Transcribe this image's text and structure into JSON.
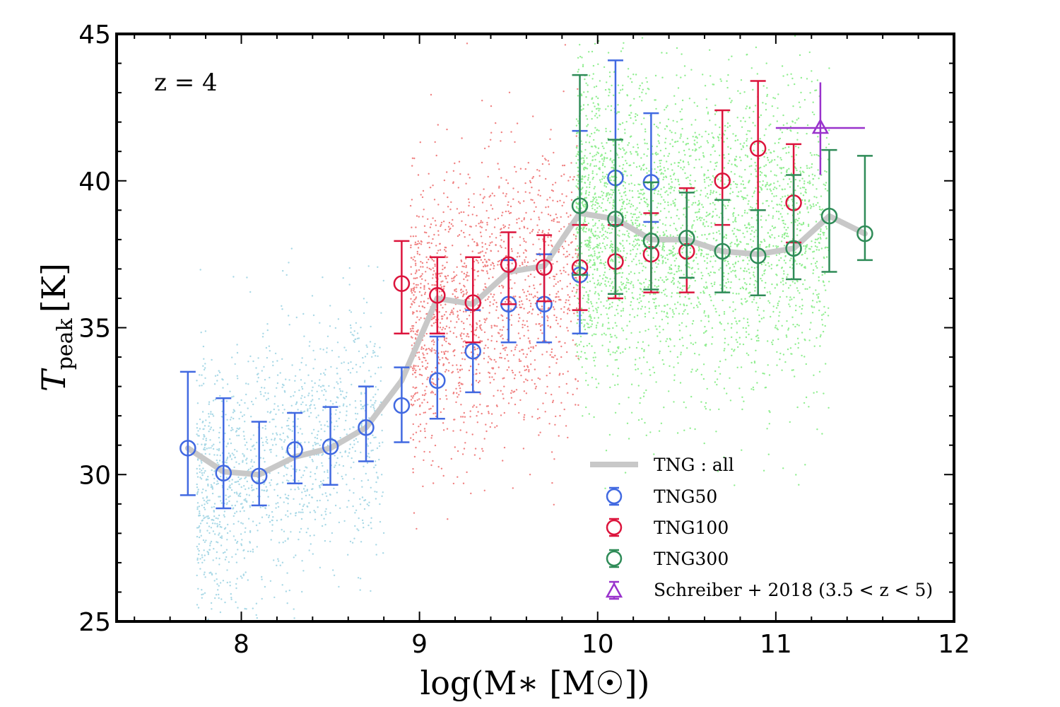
{
  "chart_data": {
    "type": "scatter",
    "annotation": "z = 4",
    "xlabel": "log(M∗ [M☉])",
    "ylabel": "T",
    "ylabel_sub": "peak",
    "ylabel_unit": "[K]",
    "xlim": [
      7.3,
      12.0
    ],
    "ylim": [
      25,
      45
    ],
    "xticks": [
      8,
      9,
      10,
      11,
      12
    ],
    "yticks": [
      25,
      30,
      35,
      40,
      45
    ],
    "colors": {
      "tng50": "#4169e1",
      "tng100": "#dc143c",
      "tng300": "#2e8b57",
      "schreiber": "#9932cc",
      "trend": "#c8c8c8",
      "cloud50": "#a8d8e6",
      "cloud100": "#f08080",
      "cloud300": "#90ee90"
    },
    "clouds": [
      {
        "name": "TNG50 galaxies",
        "xrange": [
          7.75,
          8.8
        ],
        "center": [
          7.8,
          29.5,
          8.8,
          32.0
        ],
        "count": 1400,
        "spread": 2.2
      },
      {
        "name": "TNG100 galaxies",
        "xrange": [
          8.95,
          9.9
        ],
        "center": [
          8.95,
          35.0,
          9.9,
          37.0
        ],
        "count": 1600,
        "spread": 2.4
      },
      {
        "name": "TNG300 galaxies",
        "xrange": [
          9.88,
          11.3
        ],
        "center": [
          9.88,
          38.5,
          11.3,
          38.0
        ],
        "count": 3200,
        "spread": 2.6
      }
    ],
    "trend": {
      "name": "TNG: all",
      "x": [
        7.7,
        7.9,
        8.1,
        8.3,
        8.5,
        8.7,
        8.9,
        9.1,
        9.3,
        9.5,
        9.7,
        9.9,
        10.1,
        10.3,
        10.5,
        10.7,
        10.9,
        11.1,
        11.3,
        11.5
      ],
      "y": [
        30.9,
        30.1,
        30.0,
        30.6,
        30.9,
        31.6,
        33.2,
        36.0,
        35.8,
        36.9,
        37.1,
        38.9,
        38.7,
        38.0,
        38.0,
        37.6,
        37.5,
        37.7,
        38.8,
        38.2
      ]
    },
    "series": [
      {
        "name": "TNG50",
        "x": [
          7.7,
          7.9,
          8.1,
          8.3,
          8.5,
          8.7,
          8.9,
          9.1,
          9.3,
          9.5,
          9.7,
          9.9,
          10.1,
          10.3
        ],
        "y": [
          30.9,
          30.05,
          29.95,
          30.85,
          30.95,
          31.6,
          32.35,
          33.2,
          34.2,
          35.8,
          35.8,
          36.8,
          40.1,
          39.95
        ],
        "ylo": [
          29.3,
          28.85,
          28.95,
          29.7,
          29.65,
          30.45,
          31.1,
          31.9,
          32.8,
          34.5,
          34.5,
          34.8,
          38.5,
          38.6
        ],
        "yhi": [
          33.5,
          32.6,
          31.8,
          32.1,
          32.3,
          33.0,
          33.65,
          34.7,
          35.6,
          37.3,
          37.5,
          41.7,
          44.1,
          42.3
        ]
      },
      {
        "name": "TNG100",
        "x": [
          8.9,
          9.1,
          9.3,
          9.5,
          9.7,
          9.9,
          10.1,
          10.3,
          10.5,
          10.7,
          10.9,
          11.1
        ],
        "y": [
          36.5,
          36.1,
          35.85,
          37.15,
          37.05,
          37.05,
          37.25,
          37.5,
          37.6,
          40.0,
          41.1,
          39.25
        ],
        "ylo": [
          34.8,
          34.8,
          34.5,
          35.8,
          35.9,
          35.6,
          36.0,
          36.2,
          36.2,
          38.5,
          39.0,
          37.9
        ],
        "yhi": [
          37.95,
          37.4,
          37.4,
          38.25,
          38.15,
          38.5,
          38.5,
          38.9,
          39.75,
          42.4,
          43.4,
          41.25
        ]
      },
      {
        "name": "TNG300",
        "x": [
          9.9,
          10.1,
          10.3,
          10.5,
          10.7,
          10.9,
          11.1,
          11.3,
          11.5
        ],
        "y": [
          39.15,
          38.7,
          37.95,
          38.05,
          37.6,
          37.45,
          37.7,
          38.8,
          38.2
        ],
        "ylo": [
          36.8,
          36.15,
          36.3,
          36.7,
          36.2,
          36.1,
          36.65,
          36.9,
          37.3
        ],
        "yhi": [
          43.6,
          41.4,
          39.95,
          39.6,
          39.35,
          39.0,
          40.2,
          41.05,
          40.85
        ]
      }
    ],
    "schreiber": {
      "name": "Schreiber + 2018 (3.5 < z < 5)",
      "x": 11.25,
      "y": 41.8,
      "xerr": [
        11.0,
        11.5
      ],
      "yerr": [
        40.2,
        43.35
      ]
    },
    "legend": {
      "position": "lower-right",
      "entries": [
        "TNG : all",
        "TNG50",
        "TNG100",
        "TNG300",
        "Schreiber +  2018 (3.5 < z < 5)"
      ]
    }
  }
}
